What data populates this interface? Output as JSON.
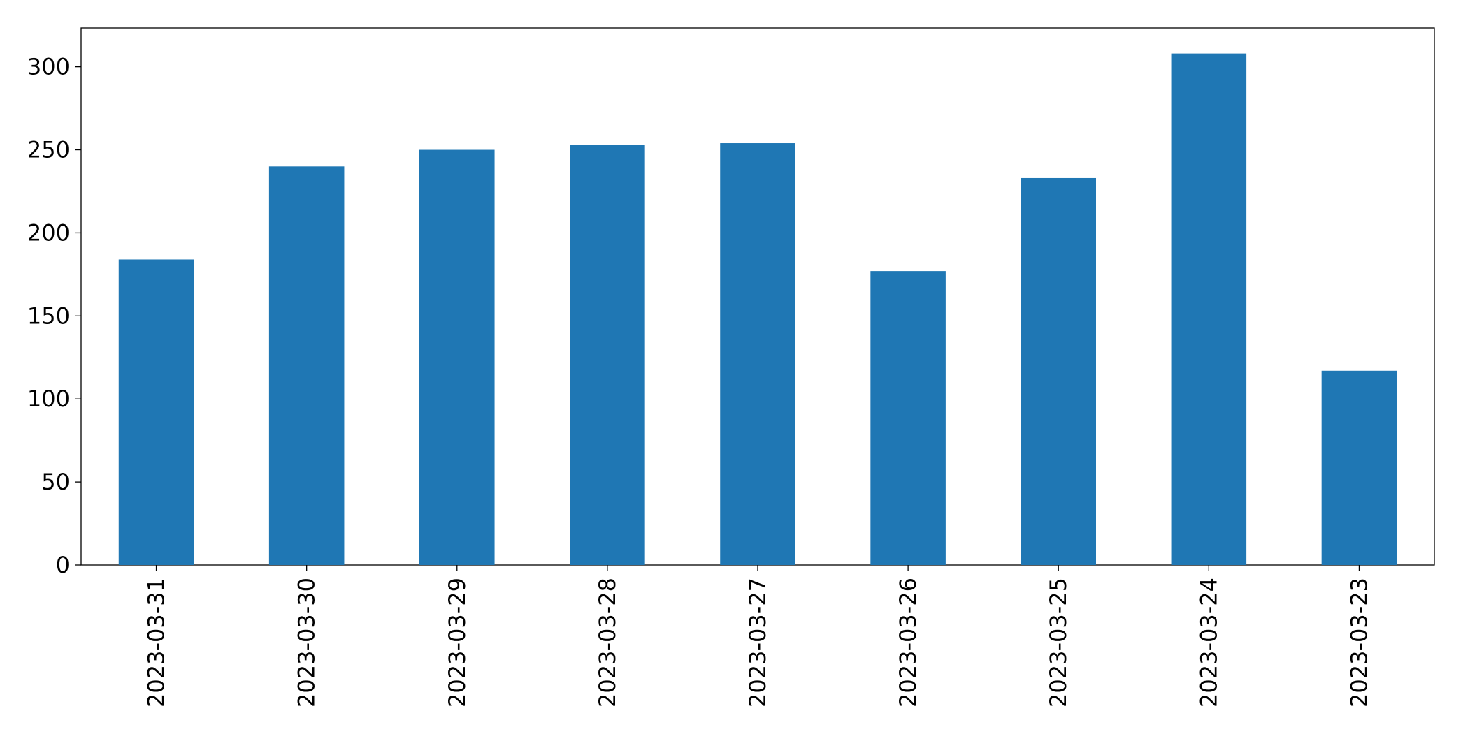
{
  "chart_data": {
    "type": "bar",
    "categories": [
      "2023-03-31",
      "2023-03-30",
      "2023-03-29",
      "2023-03-28",
      "2023-03-27",
      "2023-03-26",
      "2023-03-25",
      "2023-03-24",
      "2023-03-23"
    ],
    "values": [
      184,
      240,
      250,
      253,
      254,
      177,
      233,
      308,
      117
    ],
    "color": "#1f77b4",
    "ylim": [
      0,
      323.4
    ],
    "yticks": [
      0,
      50,
      100,
      150,
      200,
      250,
      300
    ],
    "grid": false
  }
}
